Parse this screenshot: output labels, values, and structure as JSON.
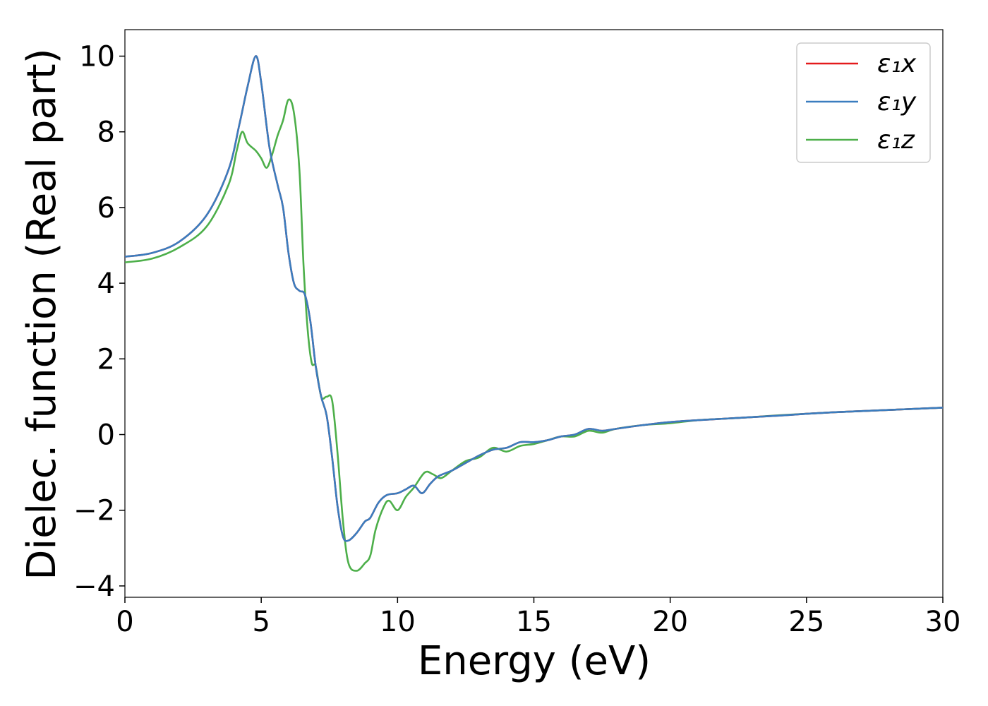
{
  "chart_data": {
    "type": "line",
    "xlabel": "Energy (eV)",
    "ylabel": "Dielec. function (Real part)",
    "xlim": [
      0,
      30
    ],
    "ylim": [
      -4.3,
      10.7
    ],
    "xticks": [
      0,
      5,
      10,
      15,
      20,
      25,
      30
    ],
    "xtick_labels": [
      "0",
      "5",
      "10",
      "15",
      "20",
      "25",
      "30"
    ],
    "yticks": [
      -4,
      -2,
      0,
      2,
      4,
      6,
      8,
      10
    ],
    "ytick_labels": [
      "−4",
      "−2",
      "0",
      "2",
      "4",
      "6",
      "8",
      "10"
    ],
    "grid": false,
    "legend_position": "top-right",
    "series": [
      {
        "name": "ε₁x",
        "color": "#e41a1c",
        "points": [
          [
            0,
            4.7
          ],
          [
            1,
            4.8
          ],
          [
            2,
            5.1
          ],
          [
            3,
            5.8
          ],
          [
            3.8,
            7.0
          ],
          [
            4.2,
            8.2
          ],
          [
            4.5,
            9.2
          ],
          [
            4.8,
            10.0
          ],
          [
            5.0,
            9.3
          ],
          [
            5.3,
            7.6
          ],
          [
            5.6,
            6.6
          ],
          [
            5.8,
            6.0
          ],
          [
            6.0,
            4.8
          ],
          [
            6.2,
            4.0
          ],
          [
            6.4,
            3.8
          ],
          [
            6.6,
            3.7
          ],
          [
            6.8,
            3.0
          ],
          [
            7.0,
            1.8
          ],
          [
            7.2,
            1.0
          ],
          [
            7.4,
            0.5
          ],
          [
            7.6,
            -0.6
          ],
          [
            7.8,
            -1.9
          ],
          [
            8.0,
            -2.7
          ],
          [
            8.2,
            -2.8
          ],
          [
            8.5,
            -2.6
          ],
          [
            8.8,
            -2.3
          ],
          [
            9.0,
            -2.2
          ],
          [
            9.3,
            -1.8
          ],
          [
            9.6,
            -1.6
          ],
          [
            10.0,
            -1.55
          ],
          [
            10.3,
            -1.45
          ],
          [
            10.6,
            -1.35
          ],
          [
            10.9,
            -1.55
          ],
          [
            11.2,
            -1.3
          ],
          [
            11.5,
            -1.1
          ],
          [
            12.0,
            -0.95
          ],
          [
            12.5,
            -0.75
          ],
          [
            13.0,
            -0.55
          ],
          [
            13.5,
            -0.4
          ],
          [
            14.0,
            -0.35
          ],
          [
            14.5,
            -0.2
          ],
          [
            15.0,
            -0.2
          ],
          [
            15.5,
            -0.15
          ],
          [
            16.0,
            -0.05
          ],
          [
            16.5,
            0.0
          ],
          [
            17.0,
            0.15
          ],
          [
            17.5,
            0.1
          ],
          [
            18.0,
            0.15
          ],
          [
            19.0,
            0.25
          ],
          [
            20.0,
            0.33
          ],
          [
            21.0,
            0.38
          ],
          [
            22.0,
            0.42
          ],
          [
            23.0,
            0.46
          ],
          [
            24.0,
            0.5
          ],
          [
            25.0,
            0.55
          ],
          [
            26.0,
            0.59
          ],
          [
            27.0,
            0.62
          ],
          [
            28.0,
            0.65
          ],
          [
            29.0,
            0.68
          ],
          [
            30.0,
            0.71
          ]
        ]
      },
      {
        "name": "ε₁y",
        "color": "#3a7dbf",
        "points": [
          [
            0,
            4.7
          ],
          [
            1,
            4.8
          ],
          [
            2,
            5.1
          ],
          [
            3,
            5.8
          ],
          [
            3.8,
            7.0
          ],
          [
            4.2,
            8.2
          ],
          [
            4.5,
            9.2
          ],
          [
            4.8,
            10.0
          ],
          [
            5.0,
            9.3
          ],
          [
            5.3,
            7.6
          ],
          [
            5.6,
            6.6
          ],
          [
            5.8,
            6.0
          ],
          [
            6.0,
            4.8
          ],
          [
            6.2,
            4.0
          ],
          [
            6.4,
            3.8
          ],
          [
            6.6,
            3.7
          ],
          [
            6.8,
            3.0
          ],
          [
            7.0,
            1.8
          ],
          [
            7.2,
            1.0
          ],
          [
            7.4,
            0.5
          ],
          [
            7.6,
            -0.6
          ],
          [
            7.8,
            -1.9
          ],
          [
            8.0,
            -2.7
          ],
          [
            8.2,
            -2.8
          ],
          [
            8.5,
            -2.6
          ],
          [
            8.8,
            -2.3
          ],
          [
            9.0,
            -2.2
          ],
          [
            9.3,
            -1.8
          ],
          [
            9.6,
            -1.6
          ],
          [
            10.0,
            -1.55
          ],
          [
            10.3,
            -1.45
          ],
          [
            10.6,
            -1.35
          ],
          [
            10.9,
            -1.55
          ],
          [
            11.2,
            -1.3
          ],
          [
            11.5,
            -1.1
          ],
          [
            12.0,
            -0.95
          ],
          [
            12.5,
            -0.75
          ],
          [
            13.0,
            -0.55
          ],
          [
            13.5,
            -0.4
          ],
          [
            14.0,
            -0.35
          ],
          [
            14.5,
            -0.2
          ],
          [
            15.0,
            -0.2
          ],
          [
            15.5,
            -0.15
          ],
          [
            16.0,
            -0.05
          ],
          [
            16.5,
            0.0
          ],
          [
            17.0,
            0.15
          ],
          [
            17.5,
            0.1
          ],
          [
            18.0,
            0.15
          ],
          [
            19.0,
            0.25
          ],
          [
            20.0,
            0.33
          ],
          [
            21.0,
            0.38
          ],
          [
            22.0,
            0.42
          ],
          [
            23.0,
            0.46
          ],
          [
            24.0,
            0.5
          ],
          [
            25.0,
            0.55
          ],
          [
            26.0,
            0.59
          ],
          [
            27.0,
            0.62
          ],
          [
            28.0,
            0.65
          ],
          [
            29.0,
            0.68
          ],
          [
            30.0,
            0.71
          ]
        ]
      },
      {
        "name": "ε₁z",
        "color": "#4daf4a",
        "points": [
          [
            0,
            4.55
          ],
          [
            1,
            4.65
          ],
          [
            2,
            4.95
          ],
          [
            3,
            5.5
          ],
          [
            3.8,
            6.6
          ],
          [
            4.1,
            7.5
          ],
          [
            4.3,
            8.0
          ],
          [
            4.5,
            7.7
          ],
          [
            4.8,
            7.5
          ],
          [
            5.0,
            7.3
          ],
          [
            5.2,
            7.05
          ],
          [
            5.4,
            7.4
          ],
          [
            5.6,
            7.9
          ],
          [
            5.8,
            8.3
          ],
          [
            6.0,
            8.85
          ],
          [
            6.2,
            8.5
          ],
          [
            6.4,
            7.0
          ],
          [
            6.55,
            4.5
          ],
          [
            6.7,
            2.8
          ],
          [
            6.85,
            1.9
          ],
          [
            7.0,
            1.8
          ],
          [
            7.2,
            1.0
          ],
          [
            7.4,
            1.0
          ],
          [
            7.6,
            0.9
          ],
          [
            7.8,
            -0.5
          ],
          [
            8.0,
            -2.3
          ],
          [
            8.2,
            -3.4
          ],
          [
            8.5,
            -3.6
          ],
          [
            8.8,
            -3.4
          ],
          [
            9.0,
            -3.2
          ],
          [
            9.2,
            -2.5
          ],
          [
            9.5,
            -1.9
          ],
          [
            9.7,
            -1.75
          ],
          [
            10.0,
            -2.0
          ],
          [
            10.3,
            -1.65
          ],
          [
            10.6,
            -1.4
          ],
          [
            11.0,
            -1.0
          ],
          [
            11.3,
            -1.05
          ],
          [
            11.6,
            -1.15
          ],
          [
            12.0,
            -0.95
          ],
          [
            12.5,
            -0.7
          ],
          [
            13.0,
            -0.6
          ],
          [
            13.5,
            -0.35
          ],
          [
            14.0,
            -0.45
          ],
          [
            14.5,
            -0.3
          ],
          [
            15.0,
            -0.25
          ],
          [
            15.5,
            -0.15
          ],
          [
            16.0,
            -0.05
          ],
          [
            16.5,
            -0.05
          ],
          [
            17.0,
            0.1
          ],
          [
            17.5,
            0.05
          ],
          [
            18.0,
            0.15
          ],
          [
            19.0,
            0.25
          ],
          [
            20.0,
            0.3
          ],
          [
            21.0,
            0.38
          ],
          [
            22.0,
            0.42
          ],
          [
            23.0,
            0.46
          ],
          [
            24.0,
            0.51
          ],
          [
            25.0,
            0.55
          ],
          [
            26.0,
            0.59
          ],
          [
            27.0,
            0.62
          ],
          [
            28.0,
            0.65
          ],
          [
            29.0,
            0.68
          ],
          [
            30.0,
            0.71
          ]
        ]
      }
    ]
  }
}
